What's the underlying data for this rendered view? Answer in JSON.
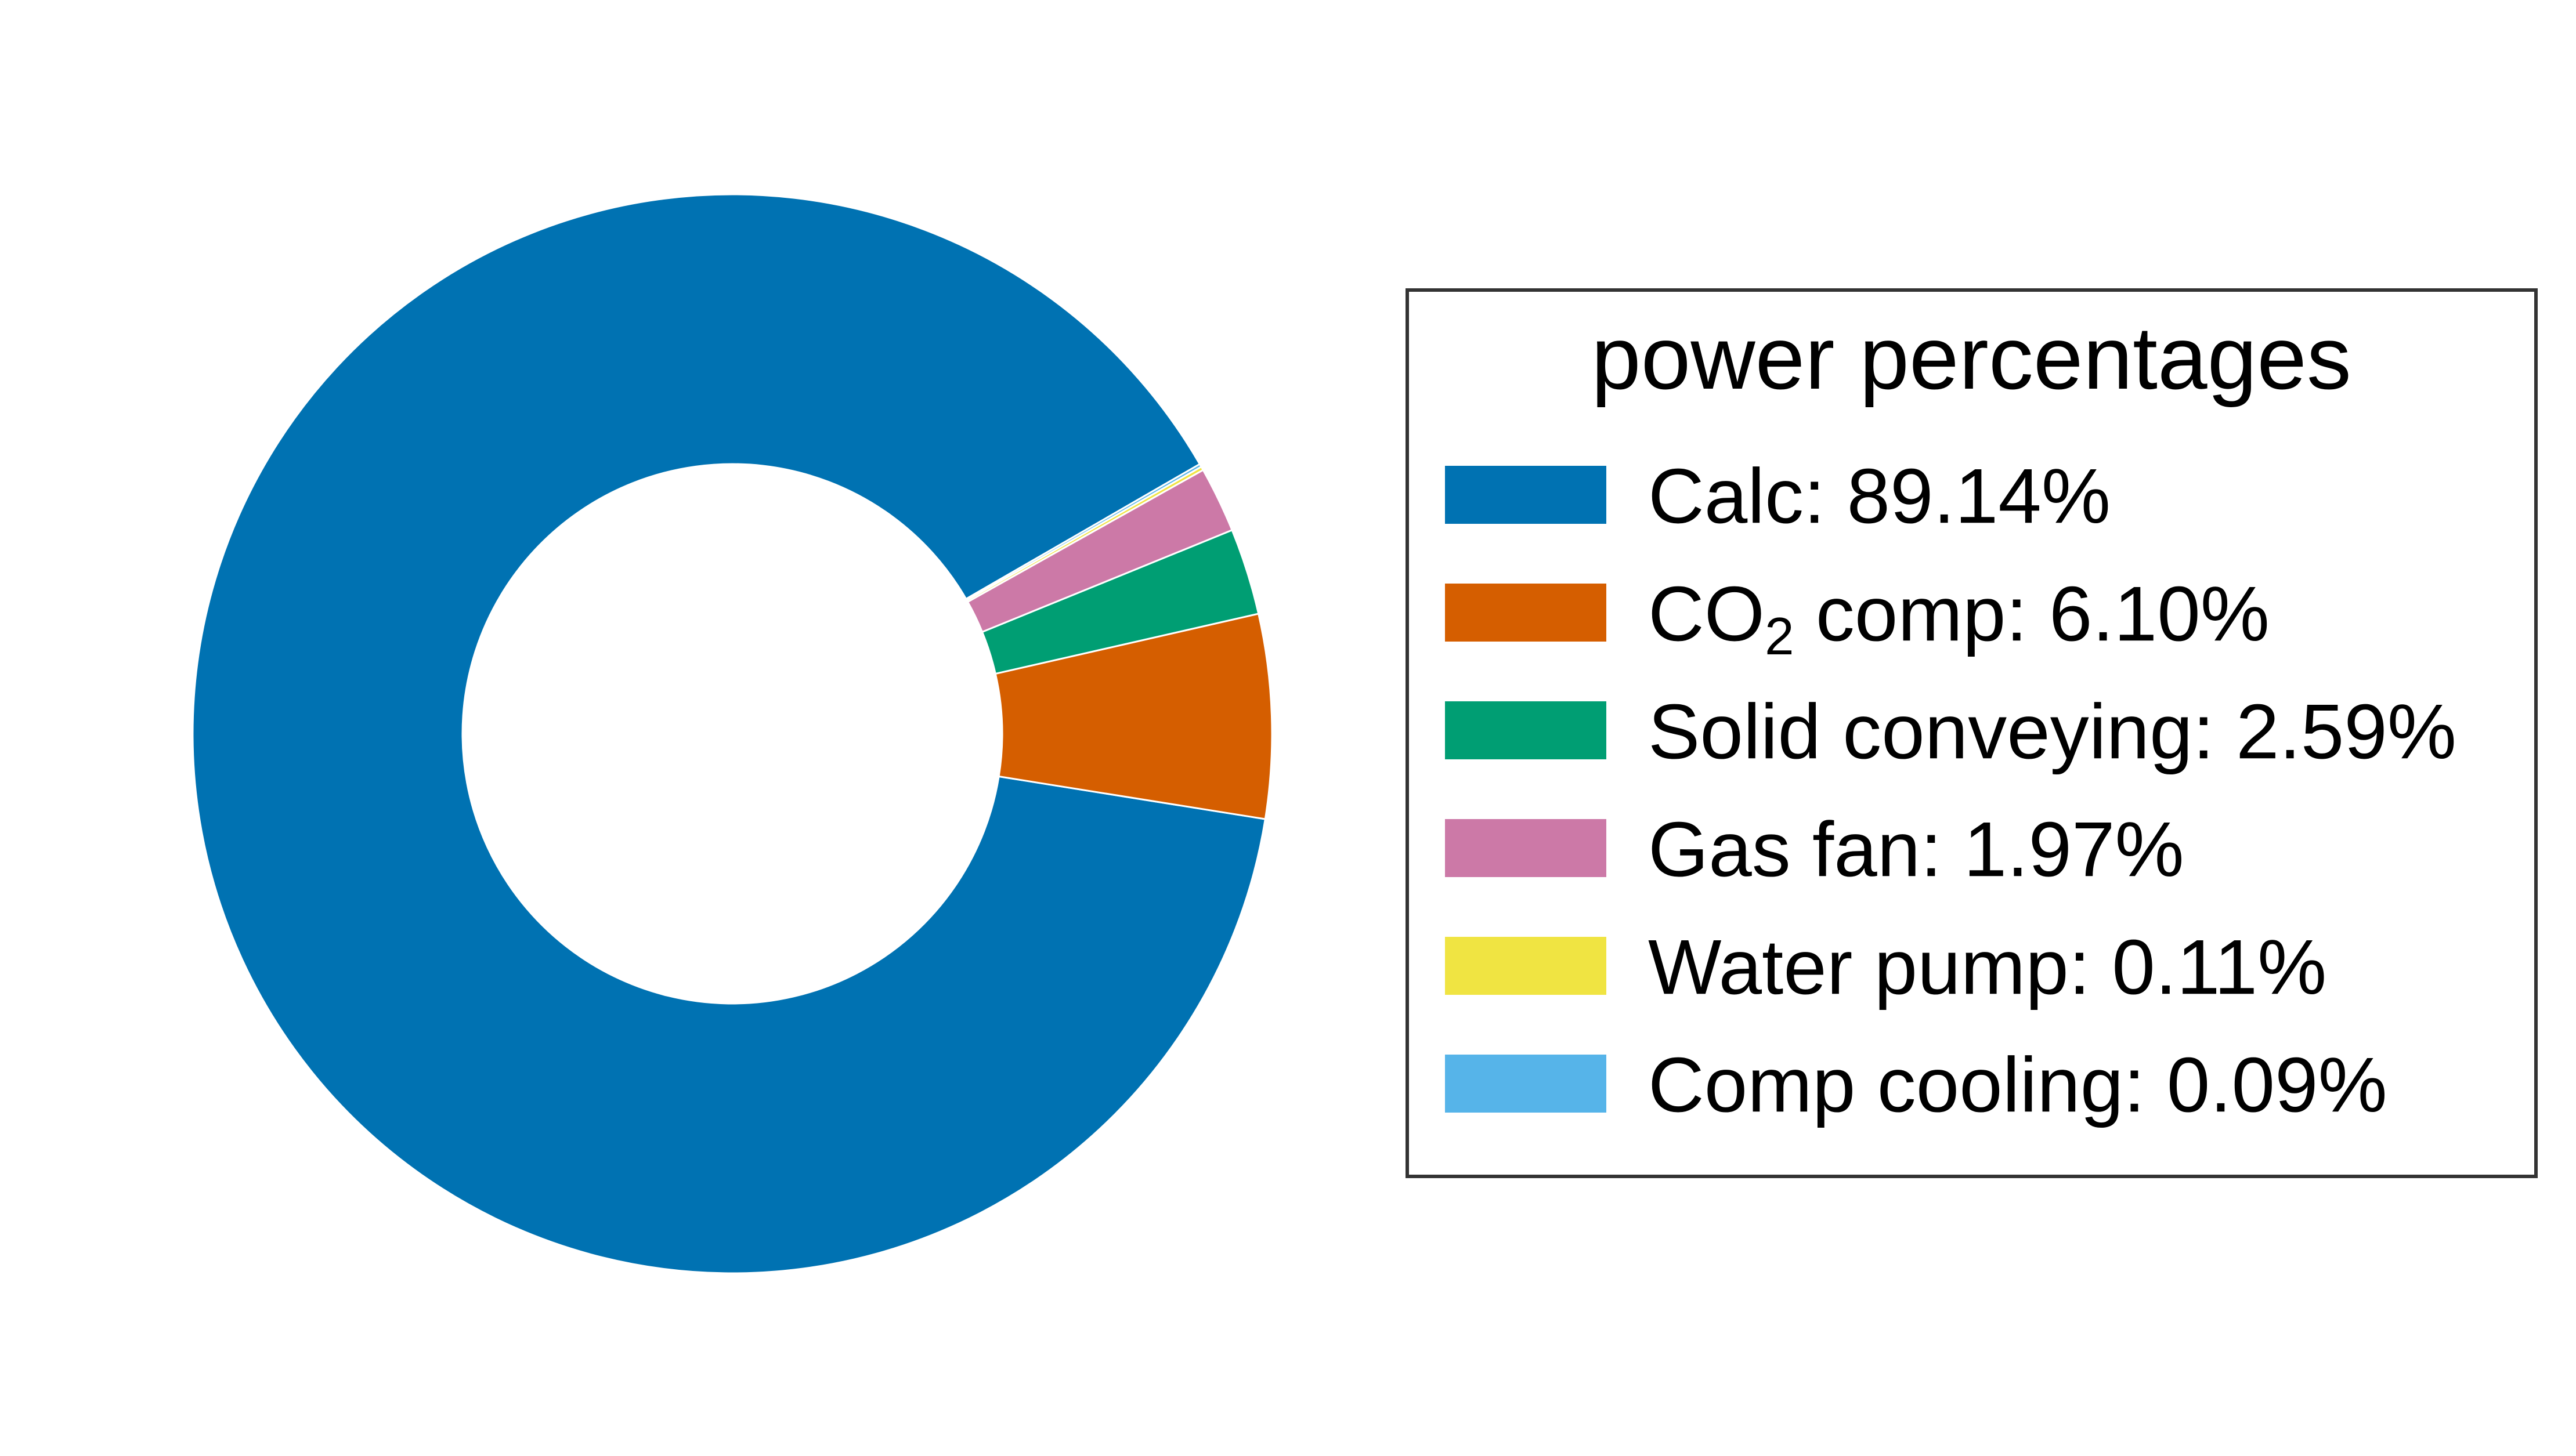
{
  "chart_data": {
    "type": "pie",
    "donut": true,
    "legend_title": "power percentages",
    "legend_placement": "right",
    "start_angle_deg": 30,
    "direction": "counterclockwise",
    "slices": [
      {
        "label": "Calc: 89.14%",
        "category": "Calc",
        "value": 89.14,
        "color": "#0072B2"
      },
      {
        "label_main": "CO",
        "label_sub": "2",
        "label_rest": " comp: 6.10%",
        "category": "CO2 comp",
        "value": 6.1,
        "color": "#D55E00"
      },
      {
        "label": "Solid conveying: 2.59%",
        "category": "Solid conveying",
        "value": 2.59,
        "color": "#009E73"
      },
      {
        "label": "Gas fan: 1.97%",
        "category": "Gas fan",
        "value": 1.97,
        "color": "#CC79A7"
      },
      {
        "label": "Water pump: 0.11%",
        "category": "Water pump",
        "value": 0.11,
        "color": "#F0E442"
      },
      {
        "label": "Comp cooling: 0.09%",
        "category": "Comp cooling",
        "value": 0.09,
        "color": "#56B4E9"
      }
    ]
  }
}
